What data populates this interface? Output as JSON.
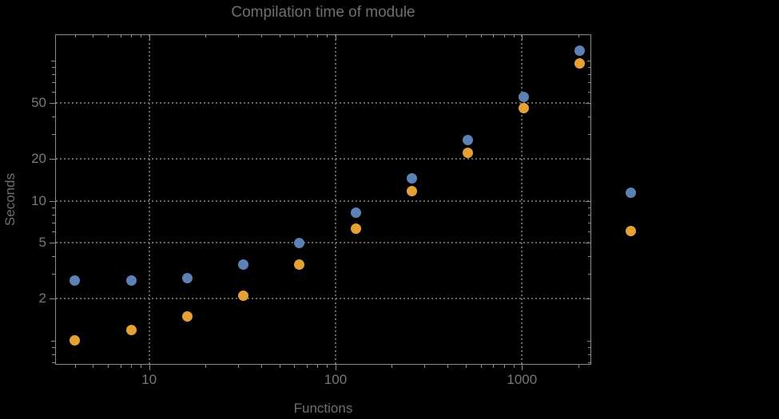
{
  "chart_data": {
    "type": "scatter",
    "scale": "log-log",
    "title": "Compilation time of module",
    "xlabel": "Functions",
    "ylabel": "Seconds",
    "x": [
      4,
      8,
      16,
      32,
      64,
      128,
      256,
      512,
      1024,
      2048
    ],
    "series": [
      {
        "marker": "disk",
        "color": "#5e81b5",
        "values": [
          2.7,
          2.7,
          2.8,
          3.5,
          5.0,
          8.2,
          14.4,
          27,
          55,
          118
        ]
      },
      {
        "marker": "disk",
        "color": "#e6a136",
        "values": [
          1.0,
          1.2,
          1.5,
          2.1,
          3.5,
          6.3,
          11.7,
          22,
          46,
          96
        ]
      }
    ],
    "xlim": [
      3.13,
      2353
    ],
    "ylim": [
      0.674,
      154.5
    ],
    "xticks": {
      "values": [
        10,
        100,
        1000
      ],
      "labels": [
        "10",
        "100",
        "1000"
      ]
    },
    "yticks": {
      "values": [
        2,
        5,
        10,
        20,
        50
      ],
      "labels": [
        "2",
        "5",
        "10",
        "20",
        "50"
      ]
    },
    "grid": "dotted",
    "grid_color": "#676767",
    "frame_color": "#8b8b8b",
    "background": "#000000",
    "legend": {
      "position": "right-outside",
      "entries": [
        {
          "color": "#5e81b5",
          "label": ""
        },
        {
          "color": "#e6a136",
          "label": ""
        }
      ]
    }
  }
}
